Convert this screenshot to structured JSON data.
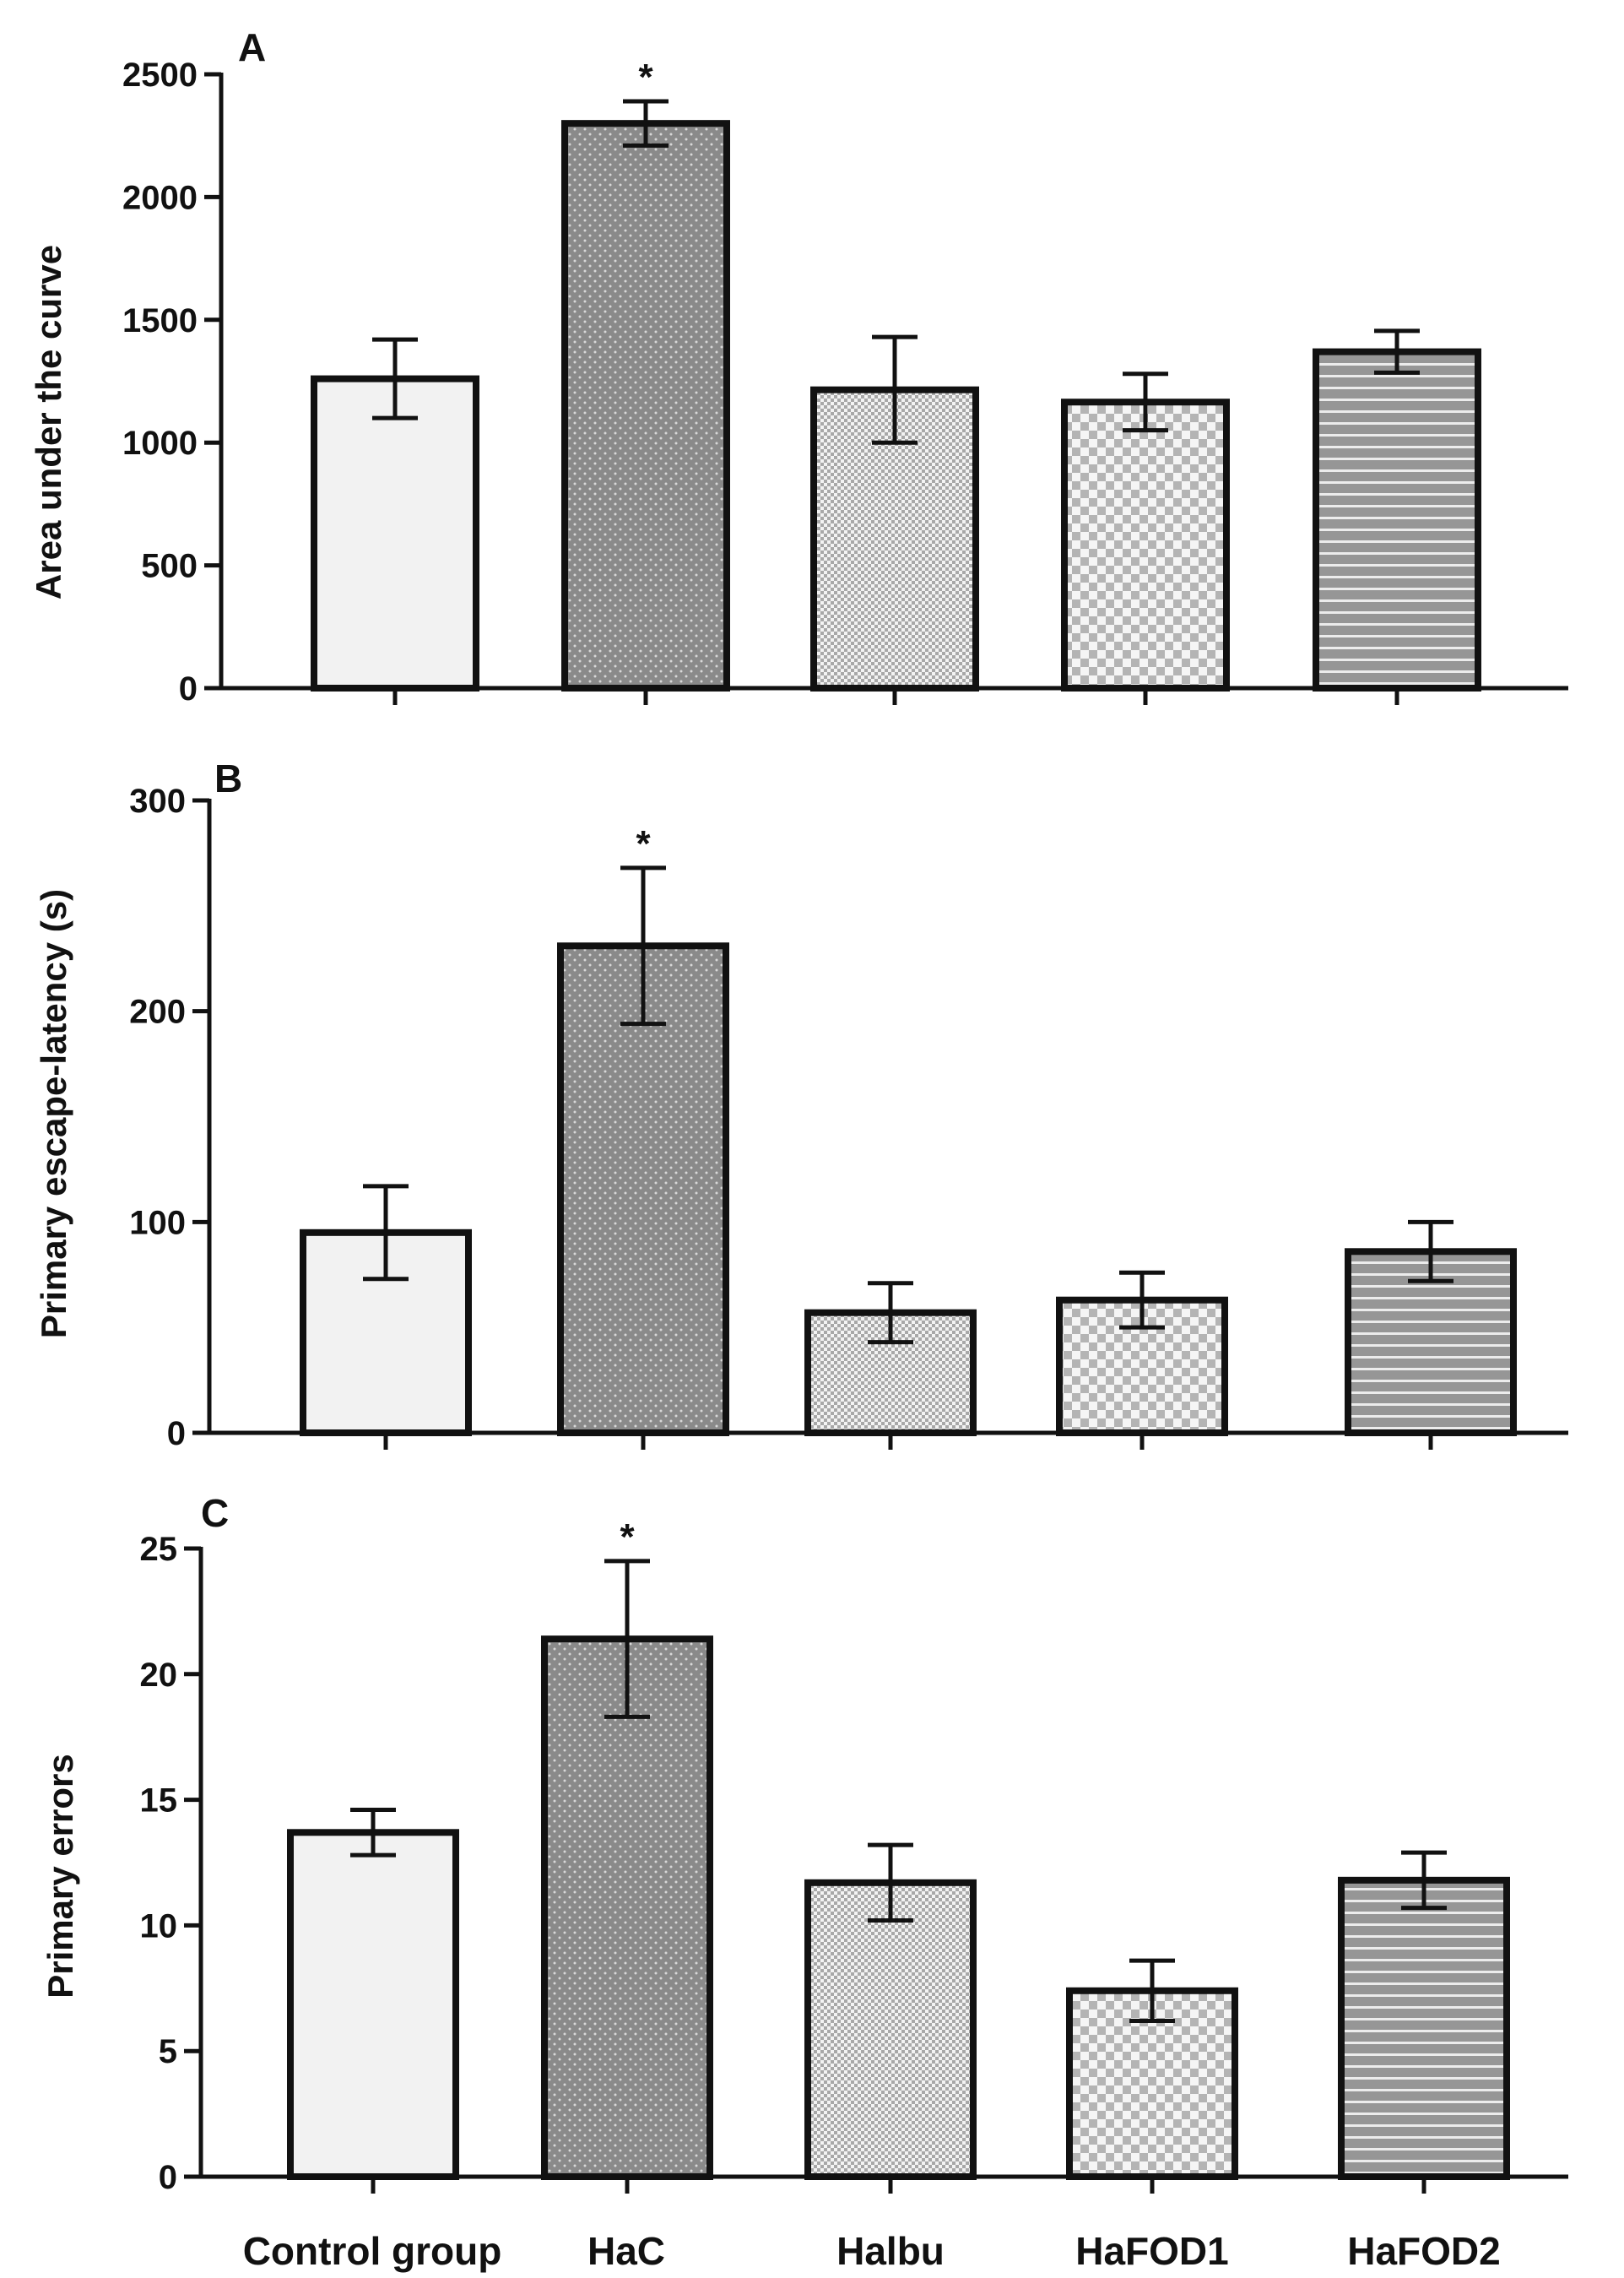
{
  "colors": {
    "axis": "#111111",
    "control": "#f2f2f2",
    "hac": "#8c8c8c",
    "halbu": "#e4e4e4",
    "hafod1": "#dedede",
    "hafod2": "#999999"
  },
  "category_labels": [
    "Control group",
    "HaC",
    "Halbu",
    "HaFOD1",
    "HaFOD2"
  ],
  "chart_data": [
    {
      "type": "bar",
      "panel": "A",
      "ylabel": "Area under the curve",
      "categories": [
        "Control group",
        "HaC",
        "Halbu",
        "HaFOD1",
        "HaFOD2"
      ],
      "values": [
        1260,
        2300,
        1215,
        1165,
        1370
      ],
      "errors": [
        160,
        90,
        215,
        115,
        85
      ],
      "patterns": [
        "plain",
        "dots",
        "fine-check",
        "checker",
        "stripes"
      ],
      "significance": [
        "",
        "*",
        "",
        "",
        ""
      ],
      "ylim": [
        0,
        2500
      ],
      "yticks": [
        0,
        500,
        1000,
        1500,
        2000,
        2500
      ]
    },
    {
      "type": "bar",
      "panel": "B",
      "ylabel": "Primary escape-latency (s)",
      "categories": [
        "Control group",
        "HaC",
        "Halbu",
        "HaFOD1",
        "HaFOD2"
      ],
      "values": [
        95,
        231,
        57,
        63,
        86
      ],
      "errors": [
        22,
        37,
        14,
        13,
        14
      ],
      "patterns": [
        "plain",
        "dots",
        "fine-check",
        "checker",
        "stripes"
      ],
      "significance": [
        "",
        "*",
        "",
        "",
        ""
      ],
      "ylim": [
        0,
        300
      ],
      "yticks": [
        0,
        100,
        200,
        300
      ]
    },
    {
      "type": "bar",
      "panel": "C",
      "ylabel": "Primary errors",
      "categories": [
        "Control group",
        "HaC",
        "Halbu",
        "HaFOD1",
        "HaFOD2"
      ],
      "values": [
        13.7,
        21.4,
        11.7,
        7.4,
        11.8
      ],
      "errors": [
        0.9,
        3.1,
        1.5,
        1.2,
        1.1
      ],
      "patterns": [
        "plain",
        "dots",
        "fine-check",
        "checker",
        "stripes"
      ],
      "significance": [
        "",
        "*",
        "",
        "",
        ""
      ],
      "ylim": [
        0,
        25
      ],
      "yticks": [
        0,
        5,
        10,
        15,
        20,
        25
      ]
    }
  ]
}
